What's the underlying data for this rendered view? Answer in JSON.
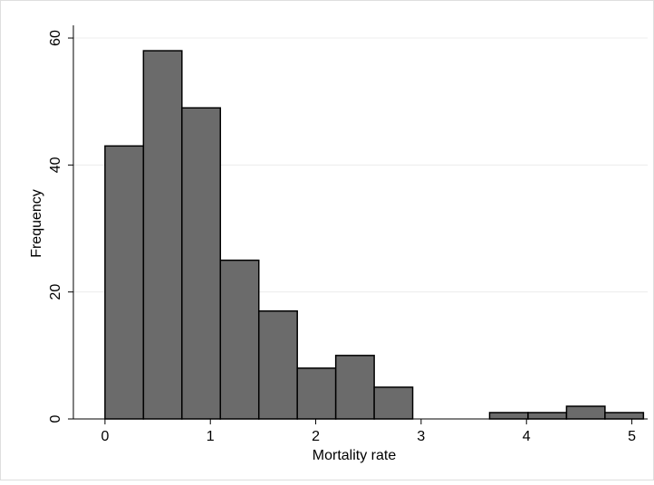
{
  "chart_data": {
    "type": "bar",
    "subtype": "histogram",
    "xlabel": "Mortality rate",
    "ylabel": "Frequency",
    "xlim": [
      -0.3,
      5.15
    ],
    "ylim": [
      0,
      62
    ],
    "x_ticks": [
      0,
      1,
      2,
      3,
      4,
      5
    ],
    "y_ticks": [
      0,
      20,
      40,
      60
    ],
    "grid": "horizontal",
    "bin_width": 0.365,
    "bins": [
      {
        "start": 0.0,
        "end": 0.365,
        "count": 43
      },
      {
        "start": 0.365,
        "end": 0.73,
        "count": 58
      },
      {
        "start": 0.73,
        "end": 1.095,
        "count": 49
      },
      {
        "start": 1.095,
        "end": 1.46,
        "count": 25
      },
      {
        "start": 1.46,
        "end": 1.825,
        "count": 17
      },
      {
        "start": 1.825,
        "end": 2.19,
        "count": 8
      },
      {
        "start": 2.19,
        "end": 2.555,
        "count": 10
      },
      {
        "start": 2.555,
        "end": 2.92,
        "count": 5
      },
      {
        "start": 3.65,
        "end": 4.015,
        "count": 1
      },
      {
        "start": 4.015,
        "end": 4.38,
        "count": 1
      },
      {
        "start": 4.38,
        "end": 4.745,
        "count": 2
      },
      {
        "start": 4.745,
        "end": 5.11,
        "count": 1
      }
    ],
    "colors": {
      "bar_fill": "#6b6b6b",
      "bar_stroke": "#000000",
      "grid": "#ececec",
      "axis": "#000000",
      "border": "#dedede"
    }
  }
}
